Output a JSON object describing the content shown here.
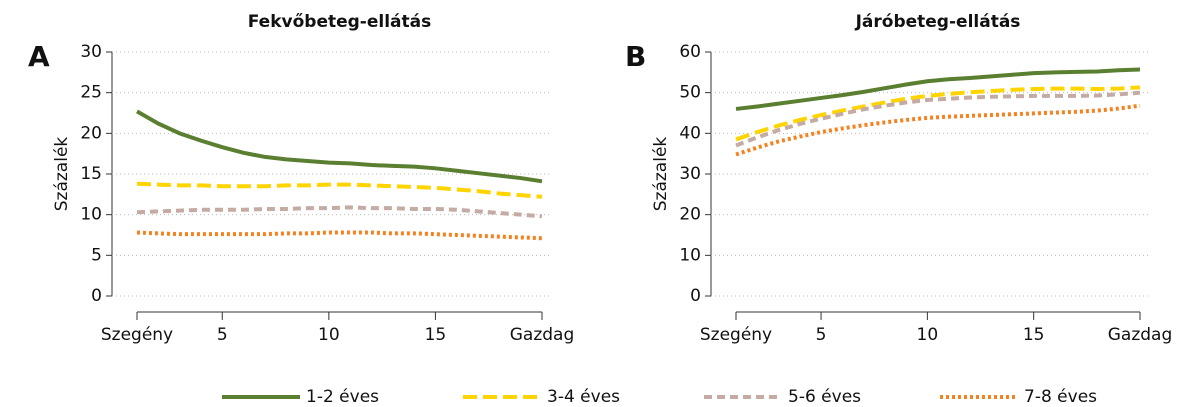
{
  "chart_data": [
    {
      "type": "line",
      "panel": "A",
      "title": "Fekvőbeteg-ellátás",
      "ylabel": "Százalék",
      "x": [
        1,
        2,
        3,
        4,
        5,
        6,
        7,
        8,
        9,
        10,
        11,
        12,
        13,
        14,
        15,
        16,
        17,
        18,
        19,
        20
      ],
      "xlim": [
        1,
        20
      ],
      "xticks": [
        {
          "value": 1,
          "label": "Szegény"
        },
        5,
        10,
        15,
        {
          "value": 20,
          "label": "Gazdag"
        }
      ],
      "ylim": [
        0,
        30
      ],
      "yticks": [
        0,
        5,
        10,
        15,
        20,
        25,
        30
      ],
      "grid": true,
      "series": [
        {
          "name": "1-2 éves",
          "color": "#5b7f30",
          "line_style": "solid",
          "values": [
            22.7,
            21.2,
            20.0,
            19.1,
            18.3,
            17.6,
            17.1,
            16.8,
            16.6,
            16.4,
            16.3,
            16.1,
            16.0,
            15.9,
            15.7,
            15.4,
            15.1,
            14.8,
            14.5,
            14.1
          ]
        },
        {
          "name": "3-4 éves",
          "color": "#ffd400",
          "line_style": "long-dash",
          "values": [
            13.8,
            13.7,
            13.6,
            13.6,
            13.5,
            13.5,
            13.5,
            13.6,
            13.6,
            13.7,
            13.7,
            13.6,
            13.5,
            13.4,
            13.3,
            13.1,
            12.9,
            12.6,
            12.4,
            12.2
          ]
        },
        {
          "name": "5-6 éves",
          "color": "#c4aba3",
          "line_style": "dash",
          "values": [
            10.3,
            10.4,
            10.5,
            10.6,
            10.6,
            10.6,
            10.7,
            10.7,
            10.8,
            10.8,
            10.9,
            10.8,
            10.8,
            10.7,
            10.7,
            10.6,
            10.4,
            10.2,
            10.0,
            9.8
          ]
        },
        {
          "name": "7-8 éves",
          "color": "#f58220",
          "line_style": "dot",
          "values": [
            7.8,
            7.7,
            7.6,
            7.6,
            7.6,
            7.6,
            7.6,
            7.7,
            7.7,
            7.8,
            7.8,
            7.8,
            7.7,
            7.7,
            7.6,
            7.5,
            7.4,
            7.3,
            7.2,
            7.1
          ]
        }
      ]
    },
    {
      "type": "line",
      "panel": "B",
      "title": "Járóbeteg-ellátás",
      "ylabel": "Százalék",
      "x": [
        1,
        2,
        3,
        4,
        5,
        6,
        7,
        8,
        9,
        10,
        11,
        12,
        13,
        14,
        15,
        16,
        17,
        18,
        19,
        20
      ],
      "xlim": [
        1,
        20
      ],
      "xticks": [
        {
          "value": 1,
          "label": "Szegény"
        },
        5,
        10,
        15,
        {
          "value": 20,
          "label": "Gazdag"
        }
      ],
      "ylim": [
        0,
        60
      ],
      "yticks": [
        0,
        10,
        20,
        30,
        40,
        50,
        60
      ],
      "grid": true,
      "series": [
        {
          "name": "1-2 éves",
          "color": "#5b7f30",
          "line_style": "solid",
          "values": [
            46.0,
            46.6,
            47.3,
            48.0,
            48.7,
            49.4,
            50.2,
            51.1,
            52.0,
            52.8,
            53.3,
            53.6,
            54.0,
            54.4,
            54.8,
            55.0,
            55.1,
            55.2,
            55.5,
            55.7
          ]
        },
        {
          "name": "3-4 éves",
          "color": "#ffd400",
          "line_style": "long-dash",
          "values": [
            38.5,
            40.3,
            41.9,
            43.3,
            44.5,
            45.6,
            46.6,
            47.6,
            48.5,
            49.2,
            49.7,
            50.1,
            50.4,
            50.7,
            50.9,
            51.0,
            51.0,
            50.9,
            51.0,
            51.3
          ]
        },
        {
          "name": "5-6 éves",
          "color": "#c4aba3",
          "line_style": "dash",
          "values": [
            37.0,
            39.0,
            40.8,
            42.3,
            43.6,
            44.8,
            45.9,
            46.8,
            47.6,
            48.2,
            48.5,
            48.8,
            49.0,
            49.1,
            49.2,
            49.2,
            49.2,
            49.3,
            49.6,
            50.0
          ]
        },
        {
          "name": "7-8 éves",
          "color": "#f58220",
          "line_style": "dot",
          "values": [
            34.8,
            36.5,
            38.0,
            39.2,
            40.3,
            41.2,
            42.0,
            42.7,
            43.3,
            43.8,
            44.1,
            44.3,
            44.5,
            44.7,
            44.9,
            45.1,
            45.3,
            45.6,
            46.1,
            46.8
          ]
        }
      ]
    }
  ]
}
